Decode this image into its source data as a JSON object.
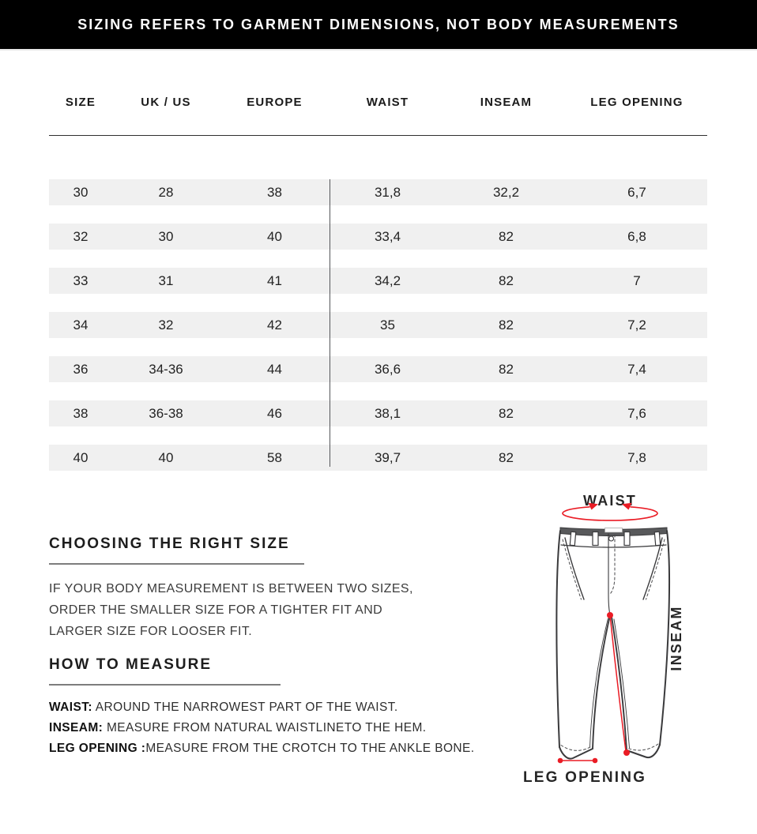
{
  "banner": {
    "text": "SIZING REFERS TO GARMENT DIMENSIONS, NOT BODY MEASUREMENTS",
    "bg_color": "#000000",
    "text_color": "#ffffff"
  },
  "size_table": {
    "columns": [
      "SIZE",
      "UK / US",
      "EUROPE",
      "WAIST",
      "INSEAM",
      "LEG OPENING"
    ],
    "rows": [
      [
        "30",
        "28",
        "38",
        "31,8",
        "32,2",
        "6,7"
      ],
      [
        "32",
        "30",
        "40",
        "33,4",
        "82",
        "6,8"
      ],
      [
        "33",
        "31",
        "41",
        "34,2",
        "82",
        "7"
      ],
      [
        "34",
        "32",
        "42",
        "35",
        "82",
        "7,2"
      ],
      [
        "36",
        "34-36",
        "44",
        "36,6",
        "82",
        "7,4"
      ],
      [
        "38",
        "36-38",
        "46",
        "38,1",
        "82",
        "7,6"
      ],
      [
        "40",
        "40",
        "58",
        "39,7",
        "82",
        "7,8"
      ]
    ],
    "row_bg_color": "#f0f0f0"
  },
  "choosing": {
    "heading": "CHOOSING THE RIGHT SIZE",
    "body_lines": [
      "IF YOUR BODY MEASUREMENT IS BETWEEN TWO SIZES,",
      "ORDER THE SMALLER SIZE FOR A TIGHTER FIT AND",
      "LARGER SIZE FOR LOOSER FIT."
    ]
  },
  "how_to_measure": {
    "heading": "HOW TO MEASURE",
    "items": [
      {
        "term": "WAIST:",
        "text": " AROUND THE NARROWEST PART OF THE WAIST."
      },
      {
        "term": "INSEAM:",
        "text": " MEASURE FROM NATURAL WAISTLINETO THE HEM."
      },
      {
        "term": "LEG OPENING :",
        "text": "MEASURE FROM THE CROTCH TO THE ANKLE BONE."
      }
    ]
  },
  "diagram": {
    "waist_label": "WAIST",
    "inseam_label": "INSEAM",
    "leg_opening_label": "LEG OPENING",
    "accent_red": "#ea1c25",
    "outline_color": "#3a3a3c",
    "waistband_color": "#58595b"
  }
}
